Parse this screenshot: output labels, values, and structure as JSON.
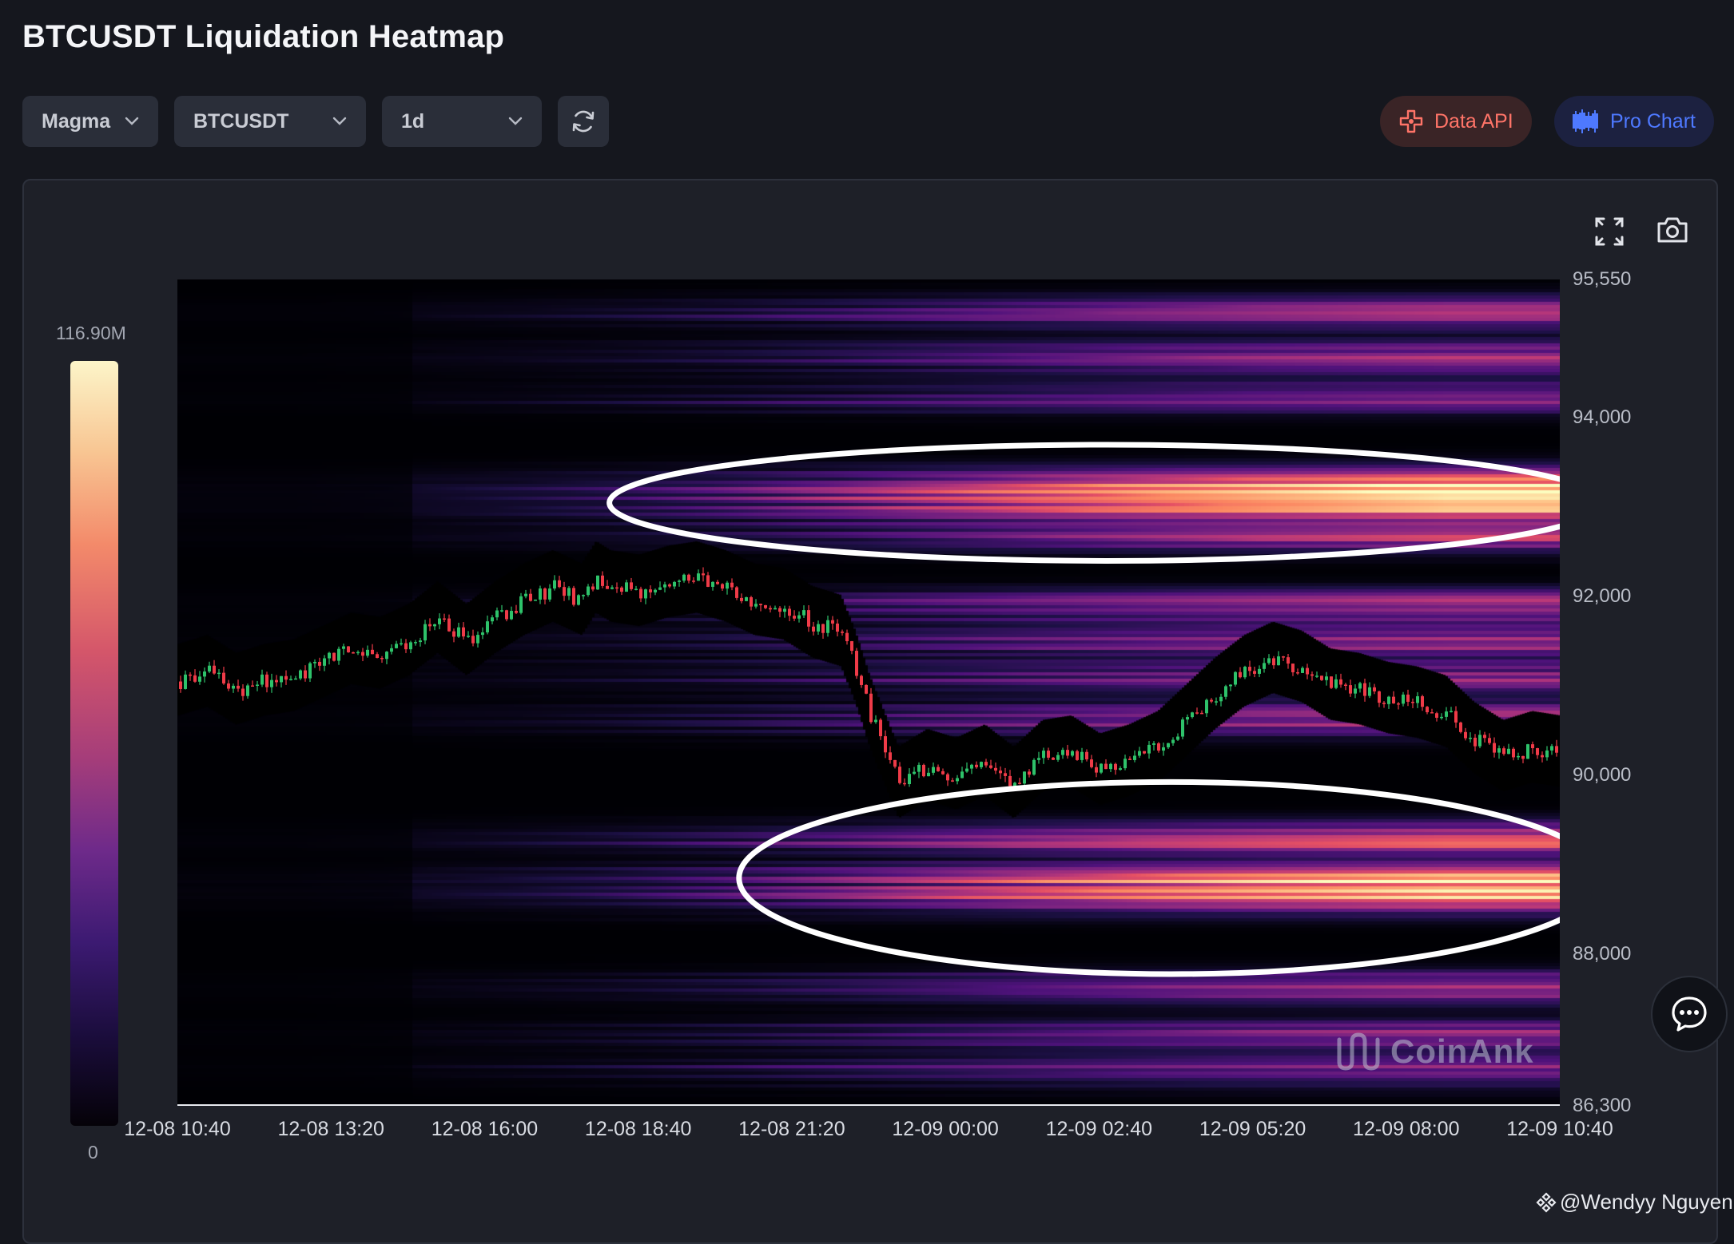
{
  "page": {
    "title": "BTCUSDT Liquidation Heatmap"
  },
  "controls": {
    "colormap": "Magma",
    "symbol": "BTCUSDT",
    "interval": "1d",
    "data_api": "Data API",
    "pro_chart": "Pro Chart"
  },
  "colors": {
    "data_api": "#ff7468",
    "pro_chart": "#4e79ff",
    "up_candle": "#2ec26a",
    "down_candle": "#ef3b48"
  },
  "scale": {
    "max_label": "116.90M",
    "min_label": "0",
    "colormap": "magma"
  },
  "watermark": "CoinAnk",
  "credit": "@Wendyy Nguyen",
  "chart_data": {
    "type": "heatmap",
    "title": "BTCUSDT Liquidation Heatmap",
    "x_ticks": [
      "12-08 10:40",
      "12-08 13:20",
      "12-08 16:00",
      "12-08 18:40",
      "12-08 21:20",
      "12-09 00:00",
      "12-09 02:40",
      "12-09 05:20",
      "12-09 08:00",
      "12-09 10:40"
    ],
    "y_ticks": [
      "95,550",
      "94,000",
      "92,000",
      "90,000",
      "88,000",
      "86,300"
    ],
    "y_tick_values": [
      95550,
      94000,
      92000,
      90000,
      88000,
      86300
    ],
    "ylim": [
      86300,
      95550
    ],
    "xlim": [
      "12-08 10:40",
      "12-09 10:40"
    ],
    "colorbar": {
      "min": 0,
      "max": "116.90M"
    },
    "price_series": {
      "name": "BTCUSDT",
      "x_hours": [
        0,
        1,
        2,
        3,
        4,
        5,
        6,
        7,
        8,
        9,
        10,
        11,
        12,
        13,
        14,
        14.5,
        15,
        16,
        17,
        18,
        19,
        20,
        21,
        22,
        23,
        23.5,
        24,
        25,
        26,
        27,
        28,
        29,
        30,
        31,
        32,
        33,
        34,
        35,
        36,
        37,
        38,
        39,
        40,
        41,
        42,
        43,
        44,
        45,
        46,
        47,
        48
      ],
      "close": [
        91050,
        91150,
        90950,
        91050,
        91100,
        91250,
        91400,
        91350,
        91500,
        91750,
        91500,
        91750,
        91950,
        92100,
        91950,
        92200,
        92100,
        92050,
        92150,
        92200,
        92100,
        91950,
        91900,
        91700,
        91600,
        91200,
        90700,
        89900,
        90100,
        90000,
        90150,
        89900,
        90200,
        90250,
        90050,
        90150,
        90300,
        90600,
        90900,
        91150,
        91300,
        91200,
        91000,
        90950,
        90850,
        90800,
        90700,
        90400,
        90200,
        90300,
        90250
      ]
    },
    "liquidation_bands": [
      {
        "price": 95200,
        "intensity": 0.55
      },
      {
        "price": 94700,
        "intensity": 0.5
      },
      {
        "price": 94250,
        "intensity": 0.45
      },
      {
        "price": 93300,
        "intensity": 0.85
      },
      {
        "price": 93050,
        "intensity": 0.95
      },
      {
        "price": 92700,
        "intensity": 0.6
      },
      {
        "price": 91900,
        "intensity": 0.65
      },
      {
        "price": 91500,
        "intensity": 0.5
      },
      {
        "price": 91100,
        "intensity": 0.45
      },
      {
        "price": 90650,
        "intensity": 0.6
      },
      {
        "price": 89300,
        "intensity": 0.75
      },
      {
        "price": 88850,
        "intensity": 0.9
      },
      {
        "price": 88650,
        "intensity": 0.8
      },
      {
        "price": 87650,
        "intensity": 0.55
      },
      {
        "price": 87100,
        "intensity": 0.5
      },
      {
        "price": 86700,
        "intensity": 0.45
      }
    ],
    "annotations": [
      {
        "shape": "ellipse",
        "price_center": 93050,
        "price_span": 1300,
        "x_start_hour": 15.0,
        "x_end_hour": 49.5
      },
      {
        "shape": "ellipse",
        "price_center": 88850,
        "price_span": 2150,
        "x_start_hour": 19.5,
        "x_end_hour": 49.5
      }
    ]
  }
}
